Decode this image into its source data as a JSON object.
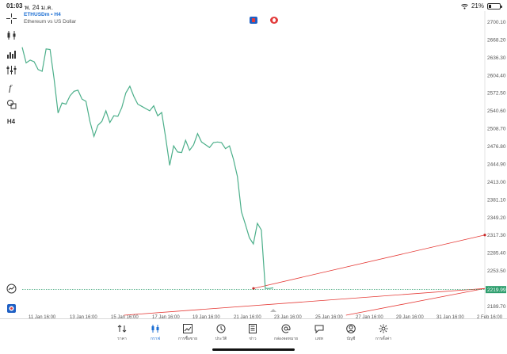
{
  "status_bar": {
    "time": "01:03",
    "date": "พ. 24 ม.ค.",
    "battery_text": "21%",
    "battery_level": 0.21
  },
  "chart_header": {
    "symbol": "ETHUSDm • H4",
    "description": "Ethereum vs US Dollar"
  },
  "left_toolbar": {
    "timeframe_label": "H4",
    "icons": [
      "crosshair-icon",
      "candlestick-icon",
      "volume-bars-icon",
      "indicator-sliders-icon",
      "function-icon",
      "shapes-icon",
      "timeframe-label",
      "grid-analysis-icon",
      "account-flag-icon"
    ]
  },
  "chart_data": {
    "type": "line",
    "symbol": "ETHUSDm",
    "timeframe": "H4",
    "color": "#4caf8a",
    "x_ticks": [
      "11 Jan 16:00",
      "13 Jan 16:00",
      "15 Jan 16:00",
      "17 Jan 16:00",
      "19 Jan 16:00",
      "21 Jan 16:00",
      "23 Jan 16:00",
      "25 Jan 16:00",
      "27 Jan 16:00",
      "29 Jan 16:00",
      "31 Jan 16:00",
      "2 Feb 16:00"
    ],
    "y_ticks": [
      "2700.10",
      "2668.20",
      "2636.30",
      "2604.40",
      "2572.50",
      "2540.60",
      "2508.70",
      "2476.80",
      "2444.90",
      "2413.00",
      "2381.10",
      "2349.20",
      "2317.30",
      "2285.40",
      "2253.50",
      "2219.99",
      "2189.70"
    ],
    "y_tick_values": [
      2700.1,
      2668.2,
      2636.3,
      2604.4,
      2572.5,
      2540.6,
      2508.7,
      2476.8,
      2444.9,
      2413.0,
      2381.1,
      2349.2,
      2317.3,
      2285.4,
      2253.5,
      2189.7
    ],
    "ylim": [
      2174,
      2720
    ],
    "current_price": 2219.99,
    "price_series": [
      2655,
      2627,
      2632,
      2629,
      2615,
      2612,
      2652,
      2651,
      2598,
      2537,
      2555,
      2553,
      2568,
      2576,
      2578,
      2562,
      2558,
      2522,
      2495,
      2515,
      2522,
      2541,
      2520,
      2532,
      2531,
      2547,
      2573,
      2585,
      2567,
      2553,
      2549,
      2545,
      2541,
      2550,
      2532,
      2538,
      2493,
      2443,
      2478,
      2467,
      2466,
      2488,
      2470,
      2480,
      2500,
      2485,
      2480,
      2475,
      2484,
      2485,
      2484,
      2473,
      2478,
      2454,
      2423,
      2360,
      2337,
      2313,
      2302,
      2339,
      2327,
      2222,
      2222,
      2223
    ],
    "trendlines": [
      {
        "name": "upper",
        "p1": [
          0.5,
          2222
        ],
        "p2": [
          1.0,
          2318
        ],
        "color": "#e53935"
      },
      {
        "name": "lower",
        "p1": [
          0.22,
          2174
        ],
        "p2": [
          1.0,
          2222
        ],
        "color": "#e53935"
      },
      {
        "name": "lower-2",
        "p1": [
          0.7,
          2174
        ],
        "p2": [
          1.0,
          2222
        ],
        "color": "#e53935"
      }
    ],
    "grid": false,
    "legend": "none"
  },
  "bottom_nav": {
    "items": [
      {
        "label": "ราคา",
        "icon": "quotes-arrows-icon",
        "active": false
      },
      {
        "label": "กราฟ",
        "icon": "chart-candles-icon",
        "active": true
      },
      {
        "label": "การซื้อขาย",
        "icon": "trade-line-icon",
        "active": false
      },
      {
        "label": "ประวัติ",
        "icon": "history-clock-icon",
        "active": false
      },
      {
        "label": "ข่าว",
        "icon": "news-doc-icon",
        "active": false
      },
      {
        "label": "กล่องจดหมาย",
        "icon": "mailbox-at-icon",
        "active": false
      },
      {
        "label": "แชท",
        "icon": "chat-bubble-icon",
        "active": false
      },
      {
        "label": "บัญชี",
        "icon": "account-user-icon",
        "active": false
      },
      {
        "label": "การตั้งค่า",
        "icon": "settings-gear-icon",
        "active": false
      }
    ]
  }
}
